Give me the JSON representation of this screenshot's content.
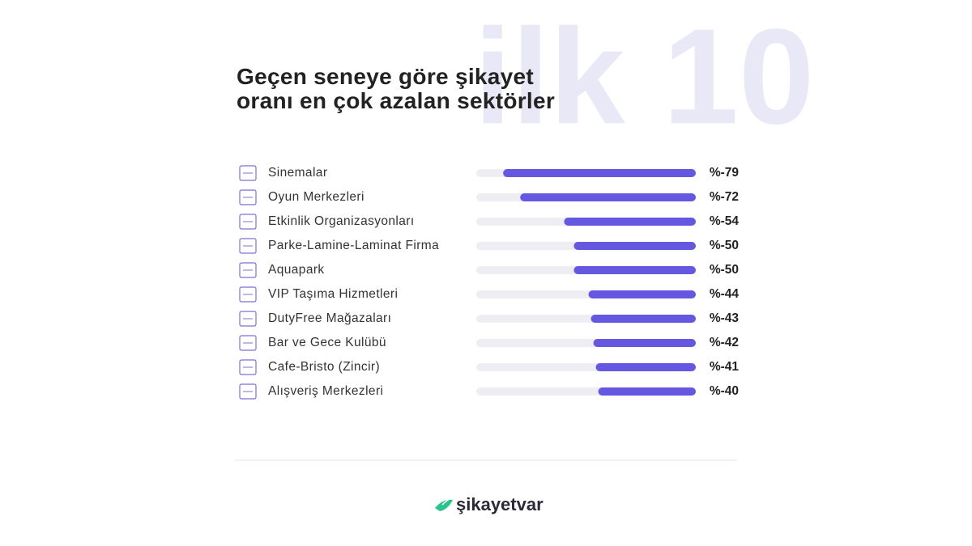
{
  "chart_data": {
    "type": "hbar",
    "watermark": "ilk 10",
    "title": "Geçen seneye göre şikayet oranı en çok azalan sektörler",
    "categories": [
      "Sinemalar",
      "Oyun Merkezleri",
      "Etkinlik Organizasyonları",
      "Parke-Lamine-Laminat Firma",
      "Aquapark",
      "VIP Taşıma Hizmetleri",
      "DutyFree Mağazaları",
      "Bar ve Gece Kulübü",
      "Cafe-Bristo (Zincir)",
      "Alışveriş Merkezleri"
    ],
    "values": [
      -79,
      -72,
      -54,
      -50,
      -50,
      -44,
      -43,
      -42,
      -41,
      -40
    ],
    "value_labels": [
      "%-79",
      "%-72",
      "%-54",
      "%-50",
      "%-50",
      "%-44",
      "%-43",
      "%-42",
      "%-41",
      "%-40"
    ],
    "xlim": [
      0,
      -90
    ],
    "color": "#6657e0",
    "track_color": "#ededf3",
    "brand": "şikayetvar"
  }
}
